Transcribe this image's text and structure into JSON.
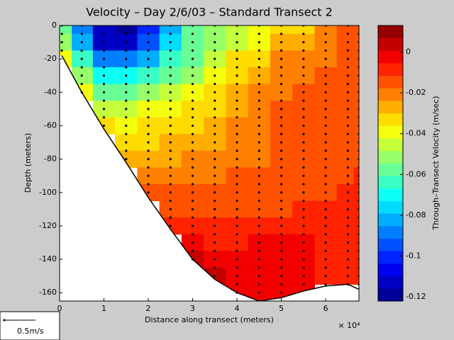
{
  "chart_data": {
    "type": "contour",
    "title": "Velocity – Day 2/6/03 – Standard Transect 2",
    "xlabel": "Distance along transect (meters)",
    "ylabel": "Depth (meters)",
    "x_multiplier": "× 10⁴",
    "colorbar_label": "Through–Transect Velocity (m/sec)",
    "scale_label": "0.5m/s",
    "colormap": "jet",
    "levels": 22,
    "clim": [
      -0.122,
      0.013
    ],
    "cticks": [
      0,
      -0.02,
      -0.04,
      -0.06,
      -0.08,
      -0.1,
      -0.12
    ],
    "xlim": [
      0,
      6.75
    ],
    "ylim": [
      -165,
      0
    ],
    "xticks": [
      0,
      1,
      2,
      3,
      4,
      5,
      6
    ],
    "yticks": [
      0,
      -20,
      -40,
      -60,
      -80,
      -100,
      -120,
      -140,
      -160
    ],
    "x": [
      0.05,
      0.5,
      1,
      1.5,
      2,
      2.5,
      3,
      3.5,
      4,
      4.5,
      5,
      5.5,
      6,
      6.5,
      6.75
    ],
    "y": [
      0,
      -10,
      -20,
      -30,
      -40,
      -50,
      -60,
      -70,
      -80,
      -90,
      -100,
      -110,
      -120,
      -130,
      -140,
      -150,
      -160
    ],
    "bottom_depth": [
      -18,
      -40,
      -62,
      -82,
      -103,
      -122,
      -140,
      -152,
      -160,
      -165,
      -163,
      -159,
      -156,
      -155,
      -158
    ],
    "values": [
      [
        -0.06,
        -0.09,
        -0.115,
        -0.12,
        -0.1,
        -0.08,
        -0.06,
        -0.05,
        -0.045,
        -0.04,
        -0.03,
        -0.03,
        -0.02,
        -0.015,
        -0.015
      ],
      [
        -0.05,
        -0.08,
        -0.11,
        -0.115,
        -0.095,
        -0.075,
        -0.06,
        -0.05,
        -0.045,
        -0.04,
        -0.025,
        -0.025,
        -0.02,
        -0.015,
        -0.015
      ],
      [
        -0.04,
        -0.065,
        -0.09,
        -0.09,
        -0.08,
        -0.065,
        -0.055,
        -0.045,
        -0.035,
        -0.03,
        -0.022,
        -0.02,
        -0.018,
        -0.015,
        -0.015
      ],
      [
        null,
        -0.05,
        -0.07,
        -0.07,
        -0.065,
        -0.055,
        -0.05,
        -0.04,
        -0.03,
        -0.025,
        -0.02,
        -0.018,
        -0.016,
        -0.015,
        -0.015
      ],
      [
        null,
        -0.04,
        -0.055,
        -0.055,
        -0.05,
        -0.045,
        -0.04,
        -0.035,
        -0.028,
        -0.022,
        -0.018,
        -0.016,
        -0.015,
        -0.015,
        -0.015
      ],
      [
        null,
        null,
        -0.045,
        -0.045,
        -0.042,
        -0.04,
        -0.035,
        -0.03,
        -0.025,
        -0.02,
        -0.017,
        -0.015,
        -0.015,
        -0.015,
        -0.015
      ],
      [
        null,
        null,
        -0.035,
        -0.038,
        -0.036,
        -0.033,
        -0.03,
        -0.027,
        -0.022,
        -0.02,
        -0.017,
        -0.015,
        -0.015,
        -0.015,
        -0.014
      ],
      [
        null,
        null,
        null,
        -0.032,
        -0.03,
        -0.028,
        -0.026,
        -0.024,
        -0.022,
        -0.02,
        -0.017,
        -0.015,
        -0.015,
        -0.014,
        -0.013
      ],
      [
        null,
        null,
        null,
        -0.028,
        -0.026,
        -0.024,
        -0.022,
        -0.02,
        -0.019,
        -0.018,
        -0.016,
        -0.015,
        -0.014,
        -0.013,
        -0.012
      ],
      [
        null,
        null,
        null,
        null,
        -0.022,
        -0.02,
        -0.019,
        -0.018,
        -0.017,
        -0.016,
        -0.015,
        -0.014,
        -0.013,
        -0.012,
        -0.011
      ],
      [
        null,
        null,
        null,
        null,
        -0.016,
        -0.016,
        -0.015,
        -0.015,
        -0.015,
        -0.015,
        -0.014,
        -0.013,
        -0.012,
        -0.011,
        -0.011
      ],
      [
        null,
        null,
        null,
        null,
        null,
        -0.012,
        -0.013,
        -0.013,
        -0.013,
        -0.012,
        -0.012,
        -0.011,
        -0.011,
        -0.011,
        -0.01
      ],
      [
        null,
        null,
        null,
        null,
        null,
        -0.009,
        -0.01,
        -0.011,
        -0.01,
        -0.008,
        -0.008,
        -0.008,
        -0.009,
        -0.01,
        -0.01
      ],
      [
        null,
        null,
        null,
        null,
        null,
        null,
        -0.005,
        -0.008,
        -0.007,
        -0.005,
        -0.004,
        -0.004,
        -0.007,
        -0.01,
        -0.01
      ],
      [
        null,
        null,
        null,
        null,
        null,
        null,
        0.002,
        -0.004,
        -0.005,
        -0.004,
        -0.002,
        -0.002,
        -0.006,
        -0.009,
        -0.01
      ],
      [
        null,
        null,
        null,
        null,
        null,
        null,
        null,
        0.003,
        -0.004,
        -0.005,
        -0.003,
        -0.004,
        -0.006,
        -0.009,
        -0.009
      ],
      [
        null,
        null,
        null,
        null,
        null,
        null,
        null,
        null,
        -0.004,
        -0.005,
        -0.005,
        -0.005,
        null,
        null,
        null
      ]
    ]
  }
}
